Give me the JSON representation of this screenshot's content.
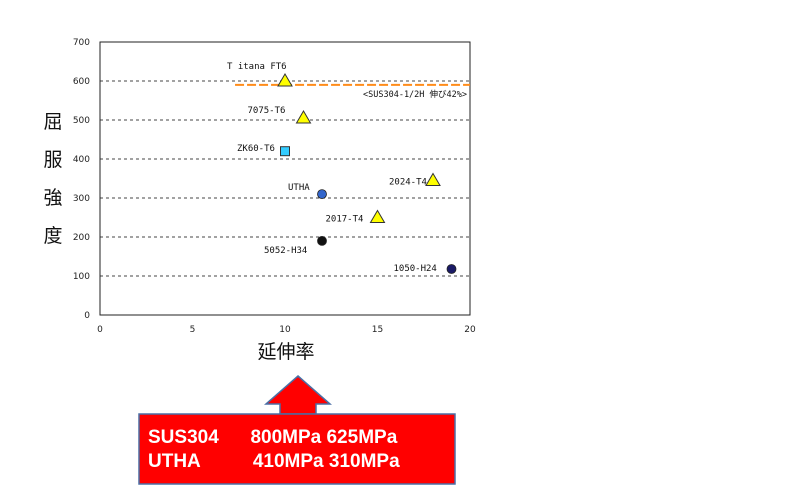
{
  "chart_data": {
    "type": "scatter",
    "ylabel": "屈服強度",
    "xlabel": "延伸率",
    "xlim": [
      0,
      20
    ],
    "ylim": [
      0,
      700
    ],
    "xticks": [
      0,
      5,
      10,
      15,
      20
    ],
    "yticks": [
      0,
      100,
      200,
      300,
      400,
      500,
      600,
      700
    ],
    "grid": "horizontal dashed",
    "points": [
      {
        "label": "T itana FT6",
        "x": 10,
        "y": 600,
        "marker": "triangle",
        "color": "#ffff00"
      },
      {
        "label": "7075-T6",
        "x": 11,
        "y": 505,
        "marker": "triangle",
        "color": "#ffff00"
      },
      {
        "label": "ZK60-T6",
        "x": 10,
        "y": 420,
        "marker": "square",
        "color": "#33ccff"
      },
      {
        "label": "UTHA",
        "x": 12,
        "y": 310,
        "marker": "circle",
        "color": "#3366cc"
      },
      {
        "label": "2024-T4",
        "x": 18,
        "y": 345,
        "marker": "triangle",
        "color": "#ffff00"
      },
      {
        "label": "2017-T4",
        "x": 15,
        "y": 250,
        "marker": "triangle",
        "color": "#ffff00"
      },
      {
        "label": "5052-H34",
        "x": 12,
        "y": 190,
        "marker": "circle",
        "color": "#111111"
      },
      {
        "label": "1050-H24",
        "x": 19,
        "y": 118,
        "marker": "circle",
        "color": "#1a1a66"
      }
    ],
    "reference_line": {
      "label": "<SUS304-1/2H 伸び42%>",
      "y": 590,
      "x_start": 7.3,
      "color": "#ff8c1a"
    }
  },
  "callout": {
    "lines": [
      "SUS304      800MPa 625MPa",
      "UTHA          410MPa 310MPa"
    ],
    "box_color": "#ff0000",
    "arrow_color": "#ff0000",
    "border_color": "#4a6fa5"
  }
}
